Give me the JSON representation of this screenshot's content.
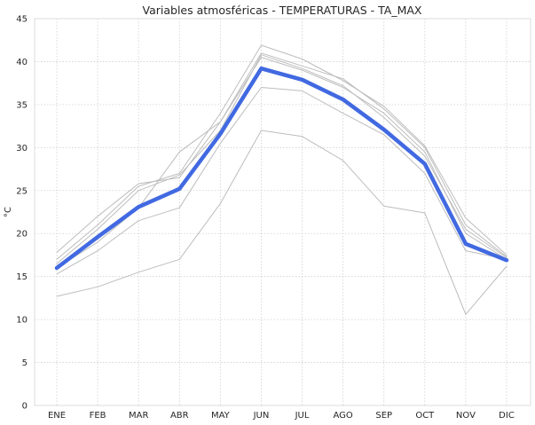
{
  "chart_data": {
    "type": "line",
    "title": "Variables atmosféricas - TEMPERATURAS - TA_MAX",
    "xlabel": "",
    "ylabel": "°C",
    "categories": [
      "ENE",
      "FEB",
      "MAR",
      "ABR",
      "MAY",
      "JUN",
      "JUL",
      "AGO",
      "SEP",
      "OCT",
      "NOV",
      "DIC"
    ],
    "ylim": [
      0,
      45
    ],
    "yticks": [
      0,
      5,
      10,
      15,
      20,
      25,
      30,
      35,
      40,
      45
    ],
    "grid": true,
    "colors": {
      "highlight": "#4169e1",
      "background_series": "#bdbdbd",
      "grid": "#cfcfcf",
      "frame": "#dedede"
    },
    "series": [
      {
        "values": [
          16.0,
          19.0,
          23.0,
          29.5,
          33.0,
          40.5,
          39.0,
          37.0,
          34.0,
          29.5,
          20.0,
          17.0
        ],
        "highlight": false
      },
      {
        "values": [
          17.0,
          21.0,
          25.5,
          27.0,
          34.0,
          41.9,
          40.3,
          37.8,
          34.8,
          30.2,
          21.8,
          17.5
        ],
        "highlight": false
      },
      {
        "values": [
          17.8,
          22.0,
          25.8,
          26.5,
          33.0,
          41.0,
          39.5,
          38.0,
          34.5,
          30.0,
          21.0,
          17.3
        ],
        "highlight": false
      },
      {
        "values": [
          16.5,
          20.5,
          25.0,
          26.8,
          32.0,
          40.8,
          39.2,
          37.2,
          33.5,
          29.0,
          20.5,
          17.2
        ],
        "highlight": false
      },
      {
        "values": [
          15.3,
          18.0,
          21.5,
          23.0,
          30.5,
          37.0,
          36.6,
          34.0,
          31.5,
          27.0,
          18.0,
          17.0
        ],
        "highlight": false
      },
      {
        "values": [
          12.7,
          13.8,
          15.5,
          17.0,
          23.5,
          32.0,
          31.3,
          28.5,
          23.2,
          22.4,
          10.6,
          16.2
        ],
        "highlight": false
      },
      {
        "values": [
          16.0,
          19.6,
          23.1,
          25.2,
          31.6,
          39.2,
          37.9,
          35.6,
          32.1,
          28.1,
          18.8,
          16.9
        ],
        "highlight": true
      }
    ]
  }
}
